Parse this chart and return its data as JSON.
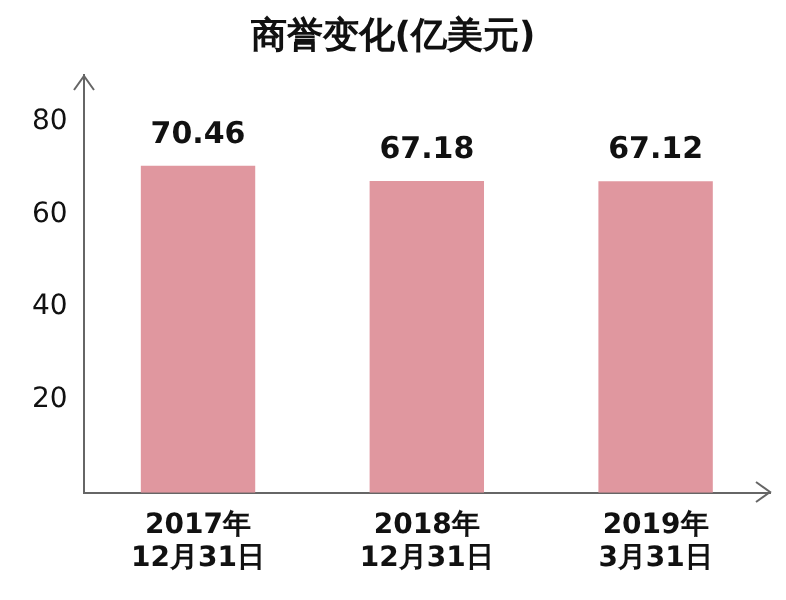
{
  "chart_data": {
    "type": "bar",
    "title": "商誉变化(亿美元)",
    "categories": [
      "2017年\n12月31日",
      "2018年\n12月31日",
      "2019年\n3月31日"
    ],
    "values": [
      70.46,
      67.18,
      67.12
    ],
    "color": "#e0979f",
    "ylim": [
      0,
      90
    ],
    "yticks": [
      20,
      40,
      60,
      80
    ],
    "grid": false,
    "data_labels": true,
    "legend": false
  }
}
